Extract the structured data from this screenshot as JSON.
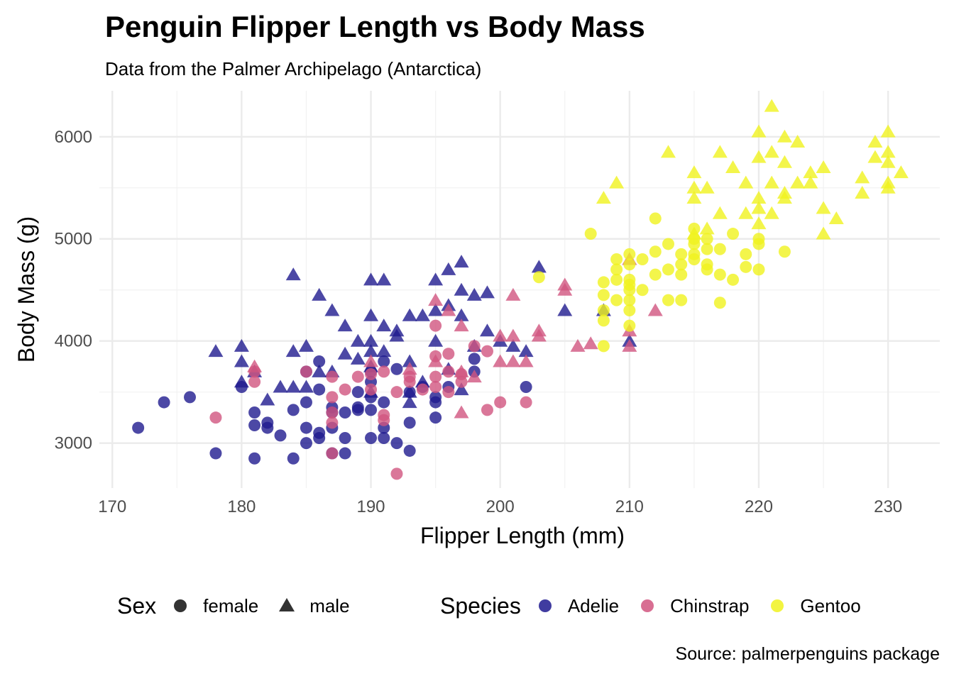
{
  "title": "Penguin Flipper Length vs Body Mass",
  "subtitle": "Data from the Palmer Archipelago (Antarctica)",
  "caption": "Source: palmerpenguins package",
  "chart_data": {
    "type": "scatter",
    "xlabel": "Flipper Length (mm)",
    "ylabel": "Body Mass (g)",
    "xlim": [
      169,
      234
    ],
    "ylim": [
      2560,
      6450
    ],
    "xticks": [
      170,
      180,
      190,
      200,
      210,
      220,
      230
    ],
    "yticks": [
      3000,
      4000,
      5000,
      6000
    ],
    "grid": true,
    "legend_position": "bottom",
    "legends": {
      "shape": {
        "title": "Sex",
        "entries": [
          {
            "label": "female",
            "shape": "circle"
          },
          {
            "label": "male",
            "shape": "triangle"
          }
        ]
      },
      "color": {
        "title": "Species",
        "entries": [
          {
            "label": "Adelie",
            "color": "#1f1a8f"
          },
          {
            "label": "Chinstrap",
            "color": "#d1557f"
          },
          {
            "label": "Gentoo",
            "color": "#f0f21e"
          }
        ]
      }
    },
    "series": [
      {
        "name": "Adelie",
        "sex": "female",
        "color": "#1f1a8f",
        "shape": "circle",
        "x": [
          172,
          174,
          176,
          178,
          180,
          181,
          181,
          181,
          182,
          182,
          183,
          184,
          184,
          185,
          185,
          185,
          185,
          186,
          186,
          186,
          186,
          187,
          187,
          187,
          187,
          188,
          188,
          188,
          189,
          189,
          189,
          190,
          190,
          190,
          190,
          190,
          191,
          191,
          191,
          191,
          192,
          192,
          193,
          193,
          193,
          194,
          195,
          195,
          195,
          196,
          198,
          198,
          202
        ],
        "y": [
          3150,
          3400,
          3450,
          2900,
          3550,
          3300,
          3175,
          2850,
          3200,
          3150,
          3075,
          3325,
          2850,
          3700,
          3400,
          3150,
          3000,
          3800,
          3525,
          3100,
          3050,
          3300,
          3350,
          2900,
          3150,
          3300,
          3050,
          2900,
          3500,
          3350,
          3325,
          3450,
          3325,
          3050,
          3700,
          3600,
          3800,
          3400,
          3150,
          3050,
          3725,
          3000,
          2925,
          3200,
          3500,
          3550,
          3450,
          3250,
          3400,
          3550,
          3700,
          3825,
          3550
        ]
      },
      {
        "name": "Adelie",
        "sex": "male",
        "color": "#1f1a8f",
        "shape": "triangle",
        "x": [
          178,
          180,
          180,
          180,
          181,
          182,
          183,
          184,
          184,
          184,
          185,
          185,
          186,
          186,
          187,
          187,
          188,
          188,
          189,
          189,
          190,
          190,
          190,
          190,
          190,
          190,
          191,
          191,
          191,
          192,
          192,
          193,
          193,
          193,
          193,
          194,
          194,
          195,
          195,
          195,
          196,
          196,
          196,
          197,
          197,
          197,
          197,
          198,
          198,
          199,
          199,
          200,
          201,
          202,
          203,
          205,
          208,
          210
        ],
        "y": [
          3900,
          3950,
          3800,
          3600,
          3700,
          3425,
          3550,
          4650,
          3900,
          3550,
          3950,
          3550,
          4450,
          3700,
          4300,
          3700,
          4150,
          3875,
          4000,
          3825,
          4600,
          4250,
          4000,
          3900,
          3750,
          3500,
          4600,
          4150,
          3900,
          4100,
          4050,
          4250,
          3800,
          3500,
          3400,
          4250,
          3600,
          4600,
          4300,
          4000,
          4700,
          4350,
          3725,
          4775,
          4500,
          4250,
          3525,
          4450,
          3950,
          4475,
          4100,
          4000,
          3950,
          3900,
          4725,
          4300,
          4300,
          4000
        ]
      },
      {
        "name": "Chinstrap",
        "sex": "female",
        "color": "#d1557f",
        "shape": "circle",
        "x": [
          178,
          181,
          181,
          185,
          187,
          187,
          187,
          187,
          187,
          188,
          189,
          190,
          190,
          191,
          191,
          191,
          192,
          192,
          193,
          193,
          194,
          195,
          195,
          195,
          195,
          196,
          196,
          196,
          197,
          197,
          198,
          199,
          199,
          200,
          202
        ],
        "y": [
          3250,
          3600,
          3700,
          3700,
          3650,
          3450,
          3300,
          3200,
          2900,
          3525,
          3650,
          3675,
          3525,
          3700,
          3275,
          3225,
          3500,
          2700,
          3650,
          3600,
          3525,
          4150,
          3850,
          3650,
          3550,
          3875,
          3700,
          3500,
          3675,
          3600,
          3950,
          3900,
          3325,
          3400,
          3400
        ]
      },
      {
        "name": "Chinstrap",
        "sex": "male",
        "color": "#d1557f",
        "shape": "triangle",
        "x": [
          181,
          190,
          193,
          195,
          195,
          196,
          197,
          197,
          197,
          198,
          200,
          200,
          201,
          201,
          201,
          202,
          203,
          203,
          205,
          205,
          206,
          207,
          210,
          210,
          210,
          212
        ],
        "y": [
          3750,
          3800,
          3725,
          4400,
          3800,
          4300,
          4150,
          3700,
          3300,
          3650,
          4050,
          3800,
          4450,
          4050,
          3800,
          3800,
          4100,
          4050,
          4550,
          4500,
          3950,
          3975,
          4800,
          4100,
          3950,
          4300
        ]
      },
      {
        "name": "Gentoo",
        "sex": "female",
        "color": "#f0f21e",
        "shape": "circle",
        "x": [
          203,
          207,
          208,
          208,
          208,
          208,
          208,
          209,
          209,
          209,
          209,
          210,
          210,
          210,
          210,
          210,
          210,
          210,
          210,
          211,
          211,
          212,
          212,
          212,
          213,
          213,
          213,
          214,
          214,
          214,
          214,
          215,
          215,
          215,
          215,
          215,
          216,
          216,
          216,
          216,
          217,
          217,
          217,
          218,
          218,
          219,
          219,
          220,
          220,
          220,
          222
        ],
        "y": [
          4625,
          5050,
          4575,
          4450,
          4300,
          4200,
          3950,
          4800,
          4700,
          4600,
          4400,
          4850,
          4750,
          4600,
          4550,
          4500,
          4400,
          4300,
          4150,
          4800,
          4500,
          5200,
          4875,
          4650,
          4950,
          4700,
          4400,
          4850,
          4750,
          4650,
          4400,
          5100,
          5000,
          4950,
          4850,
          4800,
          5000,
          4900,
          4750,
          4700,
          4900,
          4650,
          4375,
          5050,
          4600,
          4850,
          4725,
          5000,
          4950,
          4700,
          4875
        ]
      },
      {
        "name": "Gentoo",
        "sex": "male",
        "color": "#f0f21e",
        "shape": "triangle",
        "x": [
          208,
          209,
          213,
          215,
          215,
          215,
          215,
          216,
          216,
          217,
          217,
          218,
          219,
          219,
          220,
          220,
          220,
          220,
          220,
          221,
          221,
          221,
          221,
          222,
          222,
          222,
          222,
          223,
          223,
          224,
          224,
          225,
          225,
          225,
          226,
          228,
          228,
          229,
          229,
          230,
          230,
          230,
          230,
          230,
          231
        ],
        "y": [
          5400,
          5550,
          5850,
          5650,
          5500,
          5400,
          5050,
          5500,
          5100,
          5850,
          5250,
          5700,
          5550,
          5250,
          6050,
          5800,
          5400,
          5300,
          5150,
          6300,
          5850,
          5550,
          5250,
          6000,
          5750,
          5450,
          5400,
          5950,
          5550,
          5650,
          5550,
          5700,
          5300,
          5050,
          5200,
          5600,
          5450,
          5950,
          5800,
          6050,
          5850,
          5750,
          5550,
          5500,
          5650
        ]
      }
    ]
  }
}
